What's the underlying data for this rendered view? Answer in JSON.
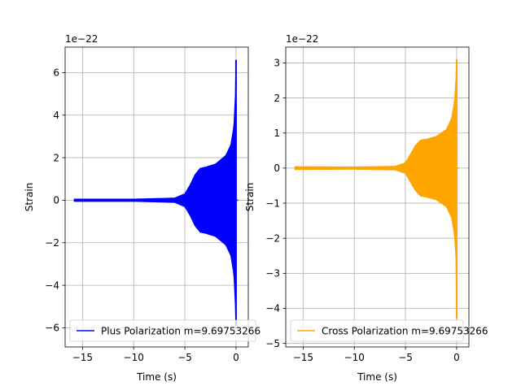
{
  "chart_data": [
    {
      "type": "line",
      "xlabel": "Time (s)",
      "ylabel": "Strain",
      "y_offset_label": "1e−22",
      "xlim": [
        -16.7,
        1.2
      ],
      "ylim": [
        -6.9,
        7.2
      ],
      "xticks": [
        -15,
        -10,
        -5,
        0
      ],
      "xtick_labels": [
        "−15",
        "−10",
        "−5",
        "0"
      ],
      "yticks": [
        -6,
        -4,
        -2,
        0,
        2,
        4,
        6
      ],
      "ytick_labels": [
        "−6",
        "−4",
        "−2",
        "0",
        "2",
        "4",
        "6"
      ],
      "grid": true,
      "legend_position": "lower-left",
      "series": [
        {
          "name": "Plus Polarization m=9.69753266",
          "color": "#0000ff",
          "t_start": -15.8,
          "t_merger": 0,
          "envelope": [
            [
              -15.8,
              0.05
            ],
            [
              -10,
              0.05
            ],
            [
              -6,
              0.1
            ],
            [
              -5,
              0.3
            ],
            [
              -4.5,
              0.7
            ],
            [
              -4,
              1.2
            ],
            [
              -3.5,
              1.5
            ],
            [
              -3,
              1.55
            ],
            [
              -2,
              1.7
            ],
            [
              -1,
              2.1
            ],
            [
              -0.5,
              2.6
            ],
            [
              -0.2,
              3.5
            ],
            [
              -0.05,
              5.0
            ],
            [
              0,
              6.6
            ]
          ],
          "peak_max": 6.6,
          "peak_min": -5.9
        }
      ]
    },
    {
      "type": "line",
      "xlabel": "Time (s)",
      "ylabel": "Strain",
      "y_offset_label": "1e−22",
      "xlim": [
        -16.7,
        1.2
      ],
      "ylim": [
        -5.1,
        3.45
      ],
      "xticks": [
        -15,
        -10,
        -5,
        0
      ],
      "xtick_labels": [
        "−15",
        "−10",
        "−5",
        "0"
      ],
      "yticks": [
        -5,
        -4,
        -3,
        -2,
        -1,
        0,
        1,
        2,
        3
      ],
      "ytick_labels": [
        "−5",
        "−4",
        "−3",
        "−2",
        "−1",
        "0",
        "1",
        "2",
        "3"
      ],
      "grid": true,
      "legend_position": "lower-left",
      "series": [
        {
          "name": "Cross Polarization m=9.69753266",
          "color": "#ffa500",
          "t_start": -15.8,
          "t_merger": 0,
          "envelope": [
            [
              -15.8,
              0.04
            ],
            [
              -10,
              0.03
            ],
            [
              -6,
              0.05
            ],
            [
              -5,
              0.15
            ],
            [
              -4.5,
              0.4
            ],
            [
              -4,
              0.65
            ],
            [
              -3.5,
              0.8
            ],
            [
              -3,
              0.82
            ],
            [
              -2,
              0.9
            ],
            [
              -1,
              1.1
            ],
            [
              -0.5,
              1.4
            ],
            [
              -0.2,
              1.9
            ],
            [
              -0.05,
              2.6
            ],
            [
              0,
              3.1
            ]
          ],
          "peak_max": 3.1,
          "peak_min": -4.3
        }
      ]
    }
  ]
}
